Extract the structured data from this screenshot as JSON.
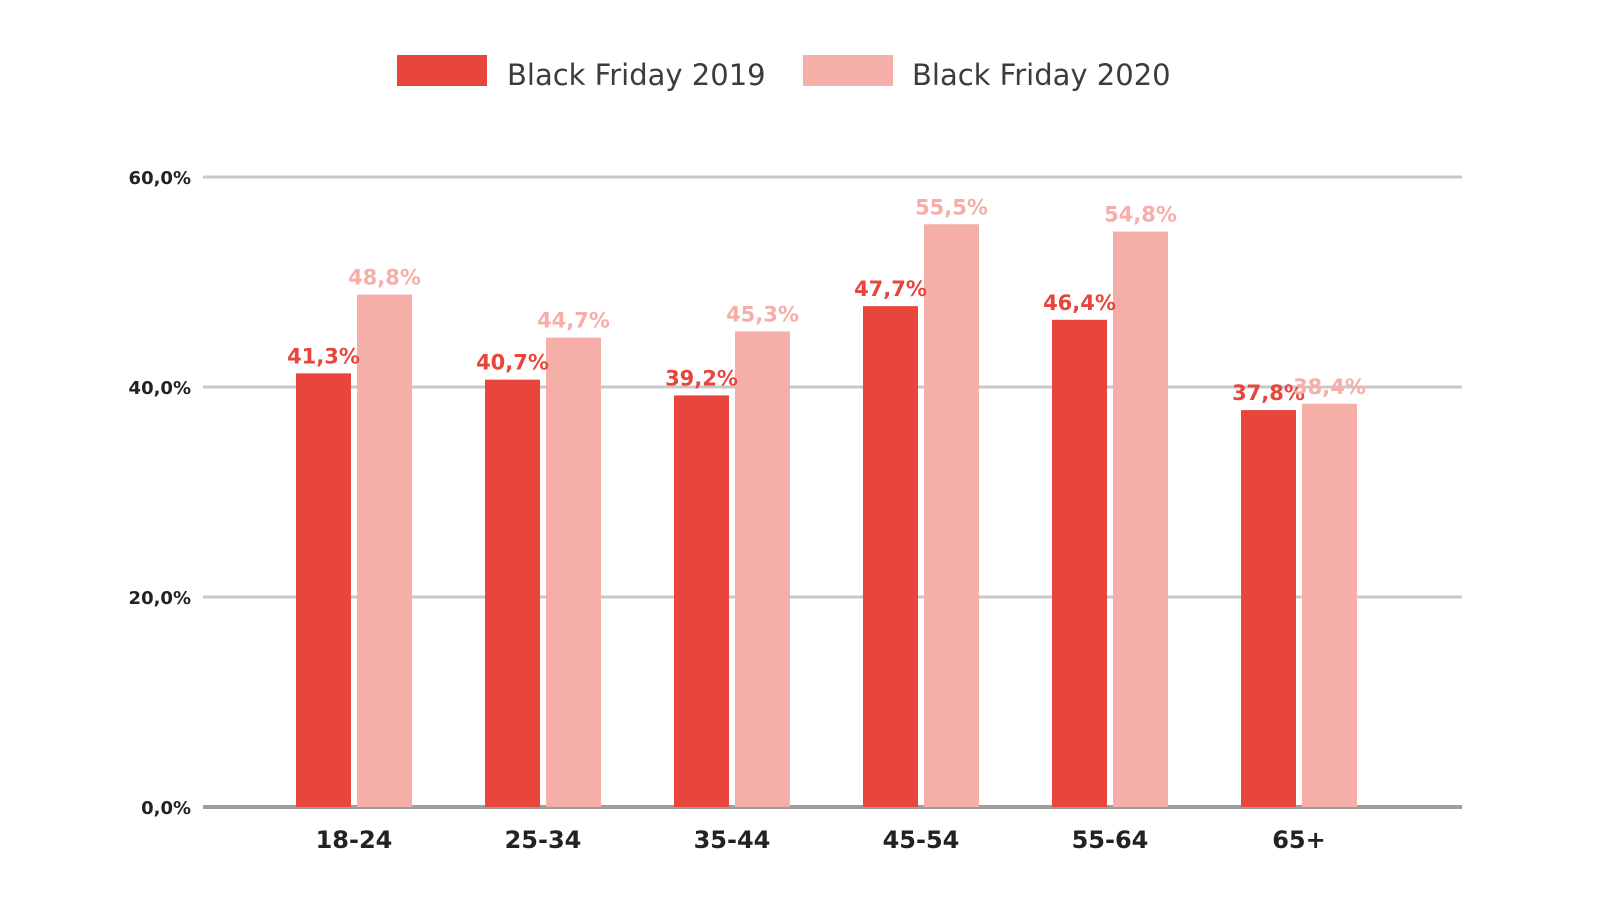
{
  "chart_data": {
    "type": "bar",
    "categories": [
      "18-24",
      "25-34",
      "35-44",
      "45-54",
      "55-64",
      "65+"
    ],
    "series": [
      {
        "name": "Black Friday 2019",
        "color": "#e8453c",
        "values": [
          41.3,
          40.7,
          39.2,
          47.7,
          46.4,
          37.8
        ],
        "labels": [
          "41,3%",
          "40,7%",
          "39,2%",
          "47,7%",
          "46,4%",
          "37,8%"
        ]
      },
      {
        "name": "Black Friday 2020",
        "color": "#f6aea9",
        "values": [
          48.8,
          44.7,
          45.3,
          55.5,
          54.8,
          38.4
        ],
        "labels": [
          "48,8%",
          "44,7%",
          "45,3%",
          "55,5%",
          "54,8%",
          "38,4%"
        ]
      }
    ],
    "ylim": [
      0,
      60
    ],
    "yticks": [
      0,
      20,
      40,
      60
    ],
    "ytick_labels": [
      "0,0%",
      "20,0%",
      "40,0%",
      "60,0%"
    ],
    "grid": true,
    "legend_position": "top-center",
    "colors": {
      "label_2019": "#e8453c",
      "label_2020": "#f6aea9",
      "gridline": "#c8c8c8",
      "baseline": "#9e9e9e"
    }
  }
}
